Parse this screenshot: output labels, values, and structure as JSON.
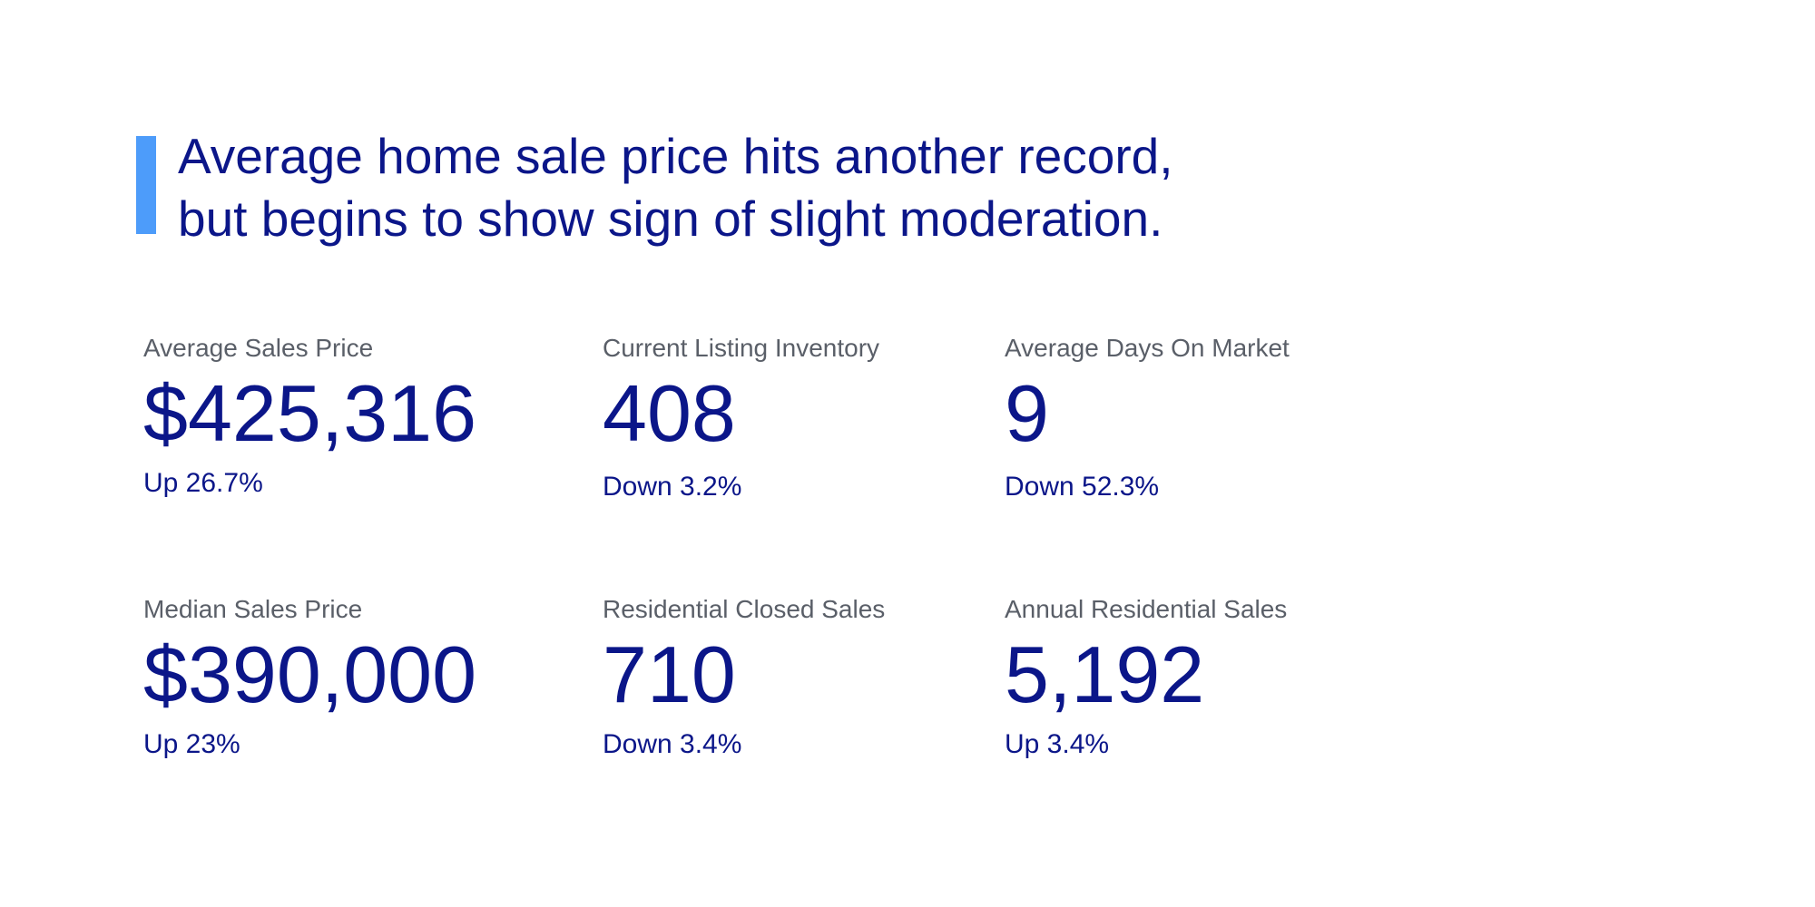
{
  "colors": {
    "accent_bar": "#4d9cfa",
    "text_primary": "#0b1689",
    "label": "#5a5f68"
  },
  "headline": {
    "line1": "Average home sale price hits another record,",
    "line2": "but begins to show sign of slight moderation."
  },
  "stats": [
    {
      "label": "Average Sales Price",
      "value": "$425,316",
      "change": "Up 26.7%"
    },
    {
      "label": "Current Listing Inventory",
      "value": "408",
      "change": "Down 3.2%"
    },
    {
      "label": "Average Days On Market",
      "value": "9",
      "change": "Down 52.3%"
    },
    {
      "label": "Median Sales Price",
      "value": "$390,000",
      "change": "Up 23%"
    },
    {
      "label": "Residential Closed Sales",
      "value": "710",
      "change": "Down 3.4%"
    },
    {
      "label": "Annual Residential Sales",
      "value": "5,192",
      "change": "Up 3.4%"
    }
  ]
}
